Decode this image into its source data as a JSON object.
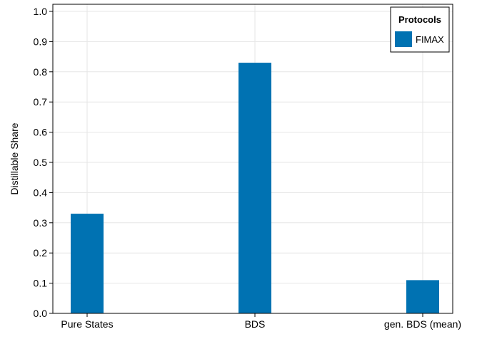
{
  "chart_data": {
    "type": "bar",
    "categories": [
      "Pure States",
      "BDS",
      "gen. BDS (mean)"
    ],
    "series": [
      {
        "name": "FIMAX",
        "values": [
          0.33,
          0.83,
          0.11
        ],
        "color": "#0072b2"
      }
    ],
    "ylabel": "Distillable Share",
    "yticks": [
      "0.0",
      "0.1",
      "0.2",
      "0.3",
      "0.4",
      "0.5",
      "0.6",
      "0.7",
      "0.8",
      "0.9",
      "1.0"
    ],
    "ylim": [
      0,
      1.0
    ],
    "grid": true,
    "legend": {
      "title": "Protocols",
      "position": "top-right"
    }
  }
}
